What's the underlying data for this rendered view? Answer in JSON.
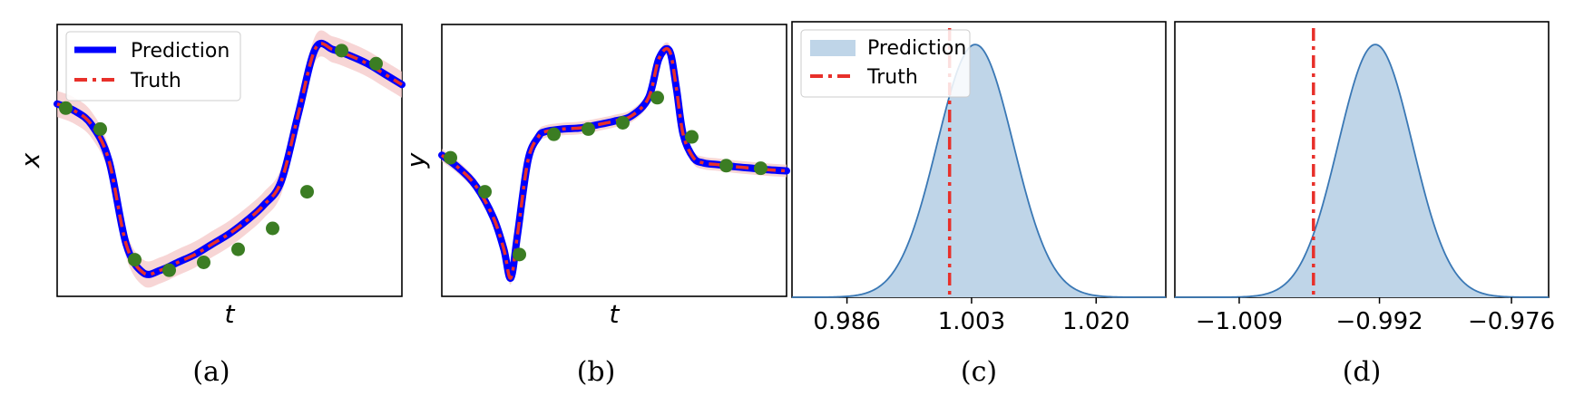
{
  "colors": {
    "prediction_line": "#0000ff",
    "truth_line": "#e8302a",
    "observation_marker": "#3b7d23",
    "uncertainty_band": "#f4c7c7",
    "density_fill": "#bfd5e8",
    "density_edge": "#3a78b5"
  },
  "chart_data": [
    {
      "id": "a",
      "type": "line",
      "caption": "(a)",
      "xlabel": "t",
      "ylabel": "x",
      "legend": {
        "position": "top-left",
        "entries": [
          "Prediction",
          "Truth"
        ]
      },
      "xlim": [
        0,
        10
      ],
      "ylim": [
        -2.6,
        2.6
      ],
      "grid": false,
      "series": [
        {
          "name": "Prediction",
          "x": [
            0,
            0.5,
            1.0,
            1.5,
            2.0,
            2.5,
            3.0,
            3.5,
            4.0,
            4.5,
            5.0,
            5.5,
            6.0,
            6.5,
            7.0,
            7.5,
            8.0,
            8.5,
            9.0,
            9.5,
            10.0
          ],
          "values": [
            1.08,
            0.95,
            0.68,
            0.0,
            -1.6,
            -2.15,
            -2.1,
            -1.95,
            -1.8,
            -1.6,
            -1.4,
            -1.15,
            -0.85,
            -0.4,
            0.9,
            2.15,
            2.12,
            2.0,
            1.85,
            1.65,
            1.45
          ]
        },
        {
          "name": "Truth",
          "x": [
            0,
            0.5,
            1.0,
            1.5,
            2.0,
            2.5,
            3.0,
            3.5,
            4.0,
            4.5,
            5.0,
            5.5,
            6.0,
            6.5,
            7.0,
            7.5,
            8.0,
            8.5,
            9.0,
            9.5,
            10.0
          ],
          "values": [
            1.08,
            0.95,
            0.68,
            0.0,
            -1.6,
            -2.15,
            -2.1,
            -1.95,
            -1.8,
            -1.6,
            -1.4,
            -1.15,
            -0.85,
            -0.4,
            0.9,
            2.15,
            2.12,
            2.0,
            1.85,
            1.65,
            1.45
          ]
        }
      ],
      "observations": {
        "x": [
          0.25,
          1.25,
          2.25,
          3.25,
          4.25,
          5.25,
          6.25,
          7.25,
          8.25,
          9.25
        ],
        "values": [
          1.0,
          0.6,
          -1.9,
          -2.1,
          -1.95,
          -1.7,
          -1.3,
          -0.6,
          2.1,
          1.85
        ]
      },
      "band_halfwidth": 0.25
    },
    {
      "id": "b",
      "type": "line",
      "caption": "(b)",
      "xlabel": "t",
      "ylabel": "y",
      "xlim": [
        0,
        10
      ],
      "ylim": [
        -2.6,
        2.6
      ],
      "grid": false,
      "series": [
        {
          "name": "Prediction",
          "x": [
            0,
            0.5,
            1.0,
            1.5,
            1.8,
            2.0,
            2.2,
            2.5,
            2.8,
            3.0,
            3.5,
            4.0,
            4.5,
            5.0,
            5.5,
            6.0,
            6.3,
            6.6,
            6.8,
            7.0,
            7.3,
            7.6,
            8.0,
            8.5,
            9.0,
            9.5,
            10.0
          ],
          "values": [
            0.1,
            -0.15,
            -0.5,
            -1.1,
            -1.7,
            -2.25,
            -1.4,
            0.0,
            0.45,
            0.55,
            0.6,
            0.62,
            0.68,
            0.75,
            0.85,
            1.2,
            1.95,
            2.1,
            1.4,
            0.5,
            0.05,
            -0.05,
            -0.08,
            -0.12,
            -0.15,
            -0.18,
            -0.2
          ]
        },
        {
          "name": "Truth",
          "x": [
            0,
            0.5,
            1.0,
            1.5,
            1.8,
            2.0,
            2.2,
            2.5,
            2.8,
            3.0,
            3.5,
            4.0,
            4.5,
            5.0,
            5.5,
            6.0,
            6.3,
            6.6,
            6.8,
            7.0,
            7.3,
            7.6,
            8.0,
            8.5,
            9.0,
            9.5,
            10.0
          ],
          "values": [
            0.1,
            -0.15,
            -0.5,
            -1.1,
            -1.7,
            -2.25,
            -1.4,
            0.0,
            0.45,
            0.55,
            0.6,
            0.62,
            0.68,
            0.75,
            0.85,
            1.2,
            1.95,
            2.1,
            1.4,
            0.5,
            0.05,
            -0.05,
            -0.08,
            -0.12,
            -0.15,
            -0.18,
            -0.2
          ]
        }
      ],
      "observations": {
        "x": [
          0.25,
          1.25,
          2.25,
          3.25,
          4.25,
          5.25,
          6.25,
          7.25,
          8.25,
          9.25
        ],
        "values": [
          0.05,
          -0.6,
          -1.8,
          0.5,
          0.6,
          0.72,
          1.2,
          0.45,
          -0.1,
          -0.15
        ]
      },
      "band_halfwidth": 0.12
    },
    {
      "id": "c",
      "type": "area",
      "caption": "(c)",
      "legend": {
        "position": "top-left",
        "entries": [
          "Prediction",
          "Truth"
        ]
      },
      "xlim": [
        0.9785,
        1.0295
      ],
      "xticks": [
        0.986,
        1.003,
        1.02
      ],
      "xtick_labels": [
        "0.986",
        "1.003",
        "1.020"
      ],
      "grid": false,
      "series": [
        {
          "name": "Prediction",
          "distribution": "normal",
          "mean": 1.0035,
          "std": 0.0052
        }
      ],
      "truth": 1.0
    },
    {
      "id": "d",
      "type": "area",
      "caption": "(d)",
      "xlim": [
        -1.0168,
        -0.9715
      ],
      "xticks": [
        -1.009,
        -0.992,
        -0.976
      ],
      "xtick_labels": [
        "−1.009",
        "−0.992",
        "−0.976"
      ],
      "grid": false,
      "series": [
        {
          "distribution": "normal",
          "mean": -0.9925,
          "std": 0.0045
        }
      ],
      "truth": -1.0
    }
  ]
}
